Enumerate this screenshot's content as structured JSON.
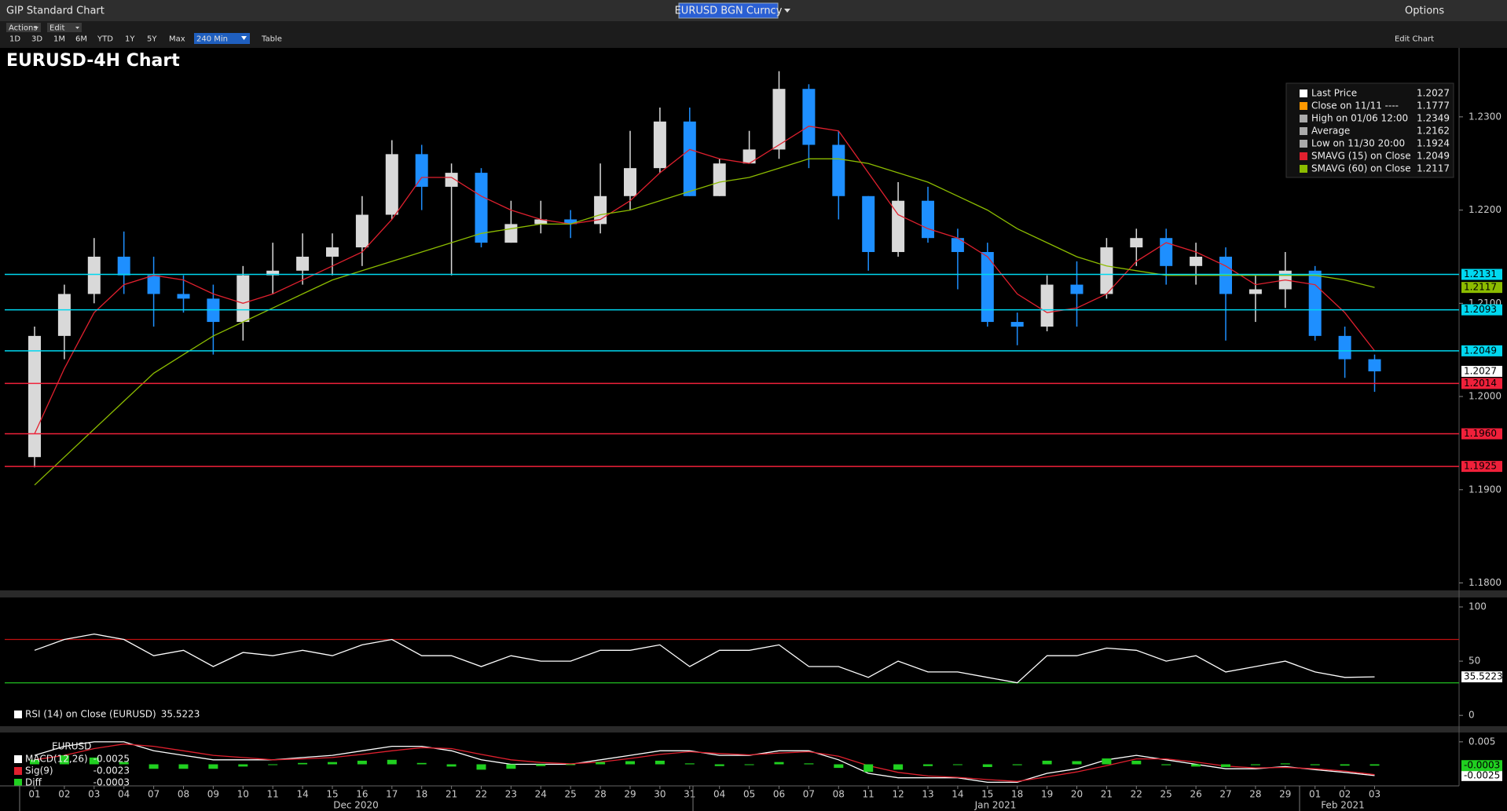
{
  "header": {
    "title": "GIP Standard Chart",
    "security": "EURUSD BGN Curncy",
    "options": "Options"
  },
  "toolbar": {
    "menus": [
      "Actions",
      "Edit"
    ],
    "ranges": [
      "1D",
      "3D",
      "1M",
      "6M",
      "YTD",
      "1Y",
      "5Y",
      "Max",
      "240 Min"
    ],
    "table": "Table",
    "edit_chart": "Edit Chart"
  },
  "chart_data": [
    {
      "type": "candlestick",
      "title": "EURUSD-4H Chart",
      "categories": [
        "01",
        "02",
        "03",
        "04",
        "07",
        "08",
        "09",
        "10",
        "11",
        "14",
        "15",
        "16",
        "17",
        "18",
        "21",
        "22",
        "23",
        "24",
        "25",
        "28",
        "29",
        "30",
        "31",
        "04",
        "05",
        "06",
        "07",
        "08",
        "11",
        "12",
        "13",
        "14",
        "15",
        "18",
        "19",
        "20",
        "21",
        "22",
        "25",
        "26",
        "27",
        "28",
        "29",
        "01",
        "02",
        "03"
      ],
      "months": [
        "Dec 2020",
        "Jan 2021",
        "Feb 2021"
      ],
      "candles": {
        "open": [
          1.1935,
          1.2065,
          1.211,
          1.215,
          1.213,
          1.211,
          1.2105,
          1.208,
          1.213,
          1.2135,
          1.215,
          1.216,
          1.2195,
          1.226,
          1.2225,
          1.224,
          1.2165,
          1.2185,
          1.219,
          1.2185,
          1.2215,
          1.2245,
          1.2295,
          1.2215,
          1.225,
          1.2265,
          1.233,
          1.227,
          1.2215,
          1.2155,
          1.221,
          1.217,
          1.2155,
          1.208,
          1.2075,
          1.212,
          1.211,
          1.216,
          1.217,
          1.214,
          1.215,
          1.211,
          1.2115,
          1.2135,
          1.2065,
          1.204
        ],
        "high": [
          1.2075,
          1.212,
          1.217,
          1.2177,
          1.215,
          1.213,
          1.212,
          1.214,
          1.2165,
          1.2175,
          1.2175,
          1.2215,
          1.2275,
          1.227,
          1.225,
          1.2245,
          1.221,
          1.221,
          1.22,
          1.225,
          1.2285,
          1.231,
          1.231,
          1.2255,
          1.2285,
          1.2349,
          1.2335,
          1.2285,
          1.2215,
          1.223,
          1.2225,
          1.218,
          1.2165,
          1.209,
          1.213,
          1.2145,
          1.217,
          1.218,
          1.218,
          1.2165,
          1.216,
          1.213,
          1.2155,
          1.214,
          1.2075,
          1.2045
        ],
        "low": [
          1.1924,
          1.204,
          1.21,
          1.211,
          1.2075,
          1.209,
          1.2045,
          1.206,
          1.211,
          1.212,
          1.213,
          1.214,
          1.219,
          1.22,
          1.213,
          1.216,
          1.2165,
          1.2175,
          1.217,
          1.2175,
          1.22,
          1.224,
          1.2215,
          1.2215,
          1.225,
          1.2255,
          1.2245,
          1.219,
          1.2135,
          1.215,
          1.2165,
          1.2115,
          1.2075,
          1.2055,
          1.207,
          1.2075,
          1.2105,
          1.214,
          1.212,
          1.212,
          1.206,
          1.208,
          1.2095,
          1.206,
          1.202,
          1.2005
        ],
        "close": [
          1.2065,
          1.211,
          1.215,
          1.213,
          1.211,
          1.2105,
          1.208,
          1.213,
          1.2135,
          1.215,
          1.216,
          1.2195,
          1.226,
          1.2225,
          1.224,
          1.2165,
          1.2185,
          1.219,
          1.2185,
          1.2215,
          1.2245,
          1.2295,
          1.2215,
          1.225,
          1.2265,
          1.233,
          1.227,
          1.2215,
          1.2155,
          1.221,
          1.217,
          1.2155,
          1.208,
          1.2075,
          1.212,
          1.211,
          1.216,
          1.217,
          1.214,
          1.215,
          1.211,
          1.2115,
          1.2135,
          1.2065,
          1.204,
          1.2027
        ]
      },
      "up_color": "#d9d9d9",
      "down_color": "#1e8fff",
      "series": [
        {
          "name": "SMAVG (15)  on Close",
          "color": "#e0202e",
          "values": [
            1.196,
            1.203,
            1.209,
            1.212,
            1.213,
            1.2125,
            1.211,
            1.21,
            1.211,
            1.2125,
            1.214,
            1.2155,
            1.219,
            1.2235,
            1.2235,
            1.2215,
            1.22,
            1.219,
            1.2185,
            1.219,
            1.221,
            1.224,
            1.2265,
            1.2255,
            1.225,
            1.227,
            1.229,
            1.2285,
            1.224,
            1.2195,
            1.218,
            1.217,
            1.215,
            1.211,
            1.209,
            1.2095,
            1.211,
            1.2145,
            1.2165,
            1.2155,
            1.214,
            1.212,
            1.2125,
            1.212,
            1.209,
            1.2049
          ]
        },
        {
          "name": "SMAVG (60)  on Close",
          "color": "#8cbc00",
          "values": [
            1.1905,
            1.1935,
            1.1965,
            1.1995,
            1.2025,
            1.2045,
            1.2065,
            1.208,
            1.2095,
            1.211,
            1.2125,
            1.2135,
            1.2145,
            1.2155,
            1.2165,
            1.2175,
            1.218,
            1.2185,
            1.2185,
            1.2195,
            1.22,
            1.221,
            1.222,
            1.223,
            1.2235,
            1.2245,
            1.2255,
            1.2255,
            1.225,
            1.224,
            1.223,
            1.2215,
            1.22,
            1.218,
            1.2165,
            1.215,
            1.214,
            1.2135,
            1.213,
            1.213,
            1.213,
            1.213,
            1.213,
            1.213,
            1.2125,
            1.2117
          ]
        }
      ],
      "legend": [
        {
          "label": "Last Price",
          "value": 1.2027,
          "color": "#ffffff"
        },
        {
          "label": "Close on 11/11 ----",
          "value": 1.1777,
          "color": "#ff9900"
        },
        {
          "label": "High on 01/06 12:00",
          "value": 1.2349,
          "color": "#aaaaaa"
        },
        {
          "label": "Average",
          "value": 1.2162,
          "color": "#aaaaaa"
        },
        {
          "label": "Low on 11/30 20:00",
          "value": 1.1924,
          "color": "#aaaaaa"
        }
      ],
      "levels": [
        {
          "value": 1.2131,
          "color": "#00d8f0"
        },
        {
          "value": 1.2093,
          "color": "#00d8f0"
        },
        {
          "value": 1.2049,
          "color": "#00d8f0"
        },
        {
          "value": 1.2014,
          "color": "#f0203a"
        },
        {
          "value": 1.196,
          "label": "1.1960",
          "color": "#f0203a"
        },
        {
          "value": 1.1925,
          "color": "#f0203a"
        }
      ],
      "ylim": [
        1.1792,
        1.2374
      ],
      "yticks": [
        {
          "value": 1.18,
          "label": "1.1800"
        },
        {
          "value": 1.19,
          "label": "1.1900"
        },
        {
          "value": 1.2,
          "label": "1.2000"
        },
        {
          "value": 1.21,
          "label": "1.2100"
        },
        {
          "value": 1.22,
          "label": "1.2200"
        },
        {
          "value": 1.23,
          "label": "1.2300"
        }
      ]
    },
    {
      "type": "line",
      "series": [
        {
          "name": "RSI (14)  on Close (EURUSD)",
          "color": "#ffffff",
          "values": [
            60,
            70,
            75,
            70,
            55,
            60,
            45,
            58,
            55,
            60,
            55,
            65,
            70,
            55,
            55,
            45,
            55,
            50,
            50,
            60,
            60,
            65,
            45,
            60,
            60,
            65,
            45,
            45,
            35,
            50,
            40,
            40,
            35,
            30,
            55,
            55,
            62,
            60,
            50,
            55,
            40,
            45,
            50,
            40,
            35,
            35.5223
          ]
        }
      ],
      "levels": [
        {
          "value": 70,
          "color": "#c01010"
        },
        {
          "value": 30,
          "color": "#20c020"
        }
      ],
      "ylim": [
        -10,
        108
      ],
      "yticks": [
        0,
        50,
        100
      ]
    },
    {
      "type": "line",
      "title": "EURUSD",
      "series": [
        {
          "name": "MACD(12,26)",
          "color": "#ffffff",
          "values": [
            0.002,
            0.004,
            0.005,
            0.005,
            0.003,
            0.002,
            0.001,
            0.001,
            0.001,
            0.0015,
            0.002,
            0.003,
            0.004,
            0.004,
            0.003,
            0.001,
            0,
            0,
            0,
            0.001,
            0.002,
            0.003,
            0.003,
            0.002,
            0.002,
            0.003,
            0.003,
            0.001,
            -0.002,
            -0.003,
            -0.003,
            -0.003,
            -0.004,
            -0.004,
            -0.002,
            -0.001,
            0.001,
            0.002,
            0.001,
            0,
            -0.001,
            -0.001,
            -0.0005,
            -0.0012,
            -0.0018,
            -0.0025
          ]
        },
        {
          "name": "Sig(9)",
          "color": "#e0202e",
          "values": [
            0.001,
            0.002,
            0.0035,
            0.0045,
            0.004,
            0.003,
            0.002,
            0.0015,
            0.001,
            0.0012,
            0.0015,
            0.0022,
            0.003,
            0.0037,
            0.0035,
            0.0022,
            0.001,
            0.0004,
            0.0001,
            0.0005,
            0.0013,
            0.0022,
            0.0028,
            0.0024,
            0.0021,
            0.0025,
            0.0028,
            0.0018,
            -0.0003,
            -0.0018,
            -0.0026,
            -0.0029,
            -0.0034,
            -0.0038,
            -0.0028,
            -0.0017,
            -0.0003,
            0.0012,
            0.0012,
            0.0005,
            -0.0004,
            -0.0008,
            -0.0007,
            -0.001,
            -0.0015,
            -0.0023
          ]
        },
        {
          "name": "Diff",
          "color": "#20d020",
          "bars": true,
          "values": [
            0.001,
            0.002,
            0.0015,
            0.0005,
            -0.001,
            -0.001,
            -0.001,
            -0.0005,
            0,
            0.0003,
            0.0005,
            0.0008,
            0.001,
            0.0003,
            -0.0005,
            -0.0012,
            -0.001,
            -0.0004,
            -0.0001,
            0.0005,
            0.0007,
            0.0008,
            0.0002,
            -0.0004,
            -0.0001,
            0.0005,
            0.0002,
            -0.0008,
            -0.0017,
            -0.0012,
            -0.0004,
            -0.0001,
            -0.0006,
            -0.0002,
            0.0008,
            0.0007,
            0.0013,
            0.0008,
            -0.0002,
            -0.0005,
            -0.0006,
            -0.0002,
            0.0002,
            -0.0002,
            -0.0003,
            -0.0003
          ]
        }
      ],
      "ylim": [
        -0.0048,
        0.0069
      ],
      "yticks": [
        0.005
      ]
    }
  ]
}
